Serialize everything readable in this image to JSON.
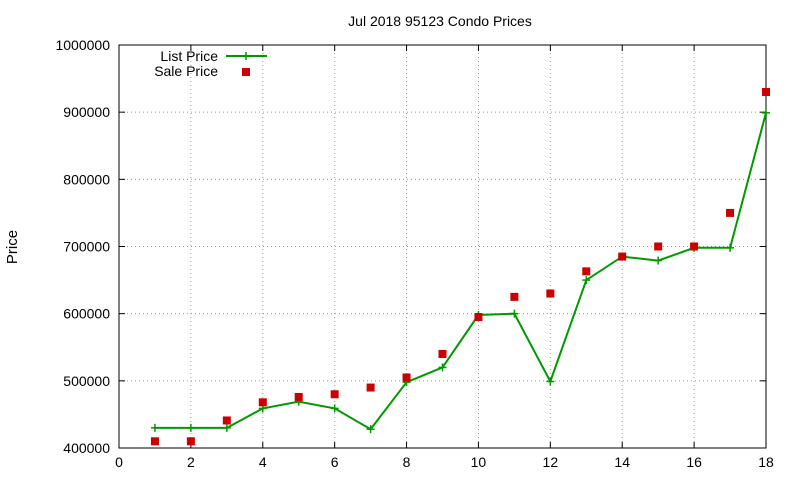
{
  "chart_data": {
    "type": "line",
    "title": "Jul 2018 95123 Condo Prices",
    "xlabel": "",
    "ylabel": "Price",
    "xlim": [
      0,
      18
    ],
    "ylim": [
      400000,
      1000000
    ],
    "xticks": [
      "0",
      "2",
      "4",
      "6",
      "8",
      "10",
      "12",
      "14",
      "16",
      "18"
    ],
    "yticks": [
      "400000",
      "500000",
      "600000",
      "700000",
      "800000",
      "900000",
      "1000000"
    ],
    "grid": true,
    "legend_position": "top-left",
    "series": [
      {
        "name": "List Price",
        "style": "line-with-plus-markers",
        "color": "#009900",
        "x": [
          1,
          2,
          3,
          4,
          5,
          6,
          7,
          8,
          9,
          10,
          11,
          12,
          13,
          14,
          15,
          16,
          17,
          18
        ],
        "values": [
          430000,
          430000,
          430000,
          459000,
          469000,
          459000,
          428000,
          498000,
          520000,
          598000,
          600000,
          499000,
          650000,
          685000,
          679000,
          698000,
          698000,
          899000
        ]
      },
      {
        "name": "Sale Price",
        "style": "square-points",
        "color": "#cc0000",
        "x": [
          1,
          2,
          3,
          4,
          5,
          6,
          7,
          8,
          9,
          10,
          11,
          12,
          13,
          14,
          15,
          16,
          17,
          18
        ],
        "values": [
          410000,
          410000,
          441000,
          468000,
          476000,
          480000,
          490000,
          505000,
          540000,
          595000,
          625000,
          630000,
          663000,
          685000,
          700000,
          700000,
          750000,
          930000
        ]
      }
    ]
  }
}
